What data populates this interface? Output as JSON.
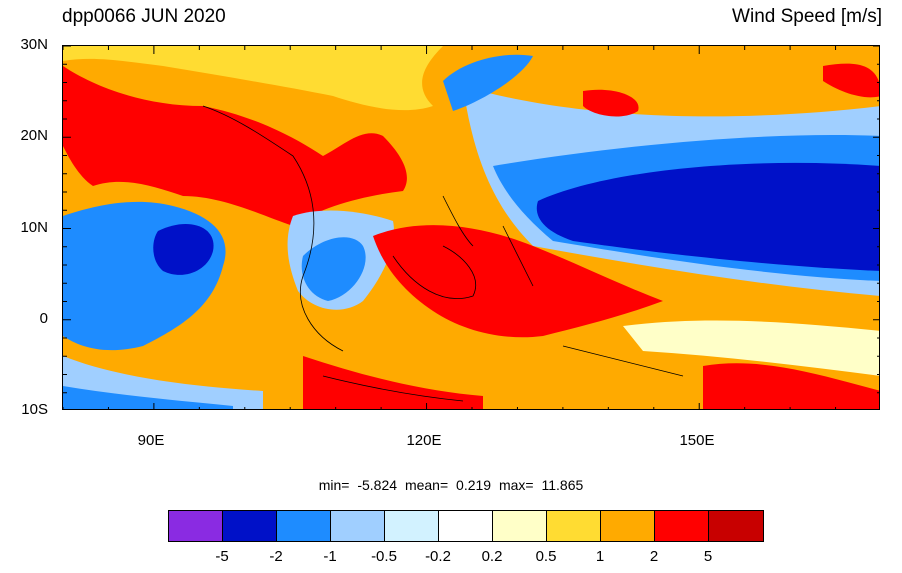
{
  "title_left": "dpp0066 JUN 2020",
  "title_right": "Wind Speed [m/s]",
  "lat_labels": [
    "30N",
    "20N",
    "10N",
    "0",
    "10S"
  ],
  "lon_labels": [
    "90E",
    "120E",
    "150E"
  ],
  "stats": {
    "min_label": "min=",
    "min_value": "-5.824",
    "mean_label": "mean=",
    "mean_value": "0.219",
    "max_label": "max=",
    "max_value": "11.865"
  },
  "colorbar": {
    "colors": [
      "#8a2be2",
      "#0011c8",
      "#1e8cff",
      "#a0cfff",
      "#d2f2ff",
      "#ffffff",
      "#ffffc8",
      "#ffdc32",
      "#ffaa00",
      "#ff0000",
      "#c80000"
    ],
    "labels": [
      "-5",
      "-2",
      "-1",
      "-0.5",
      "-0.2",
      "0.2",
      "0.5",
      "1",
      "2",
      "5"
    ]
  },
  "map": {
    "lon_range": [
      80,
      170
    ],
    "lat_range": [
      -10,
      30
    ],
    "lon_tick_step": 5,
    "lat_tick_step": 2
  }
}
